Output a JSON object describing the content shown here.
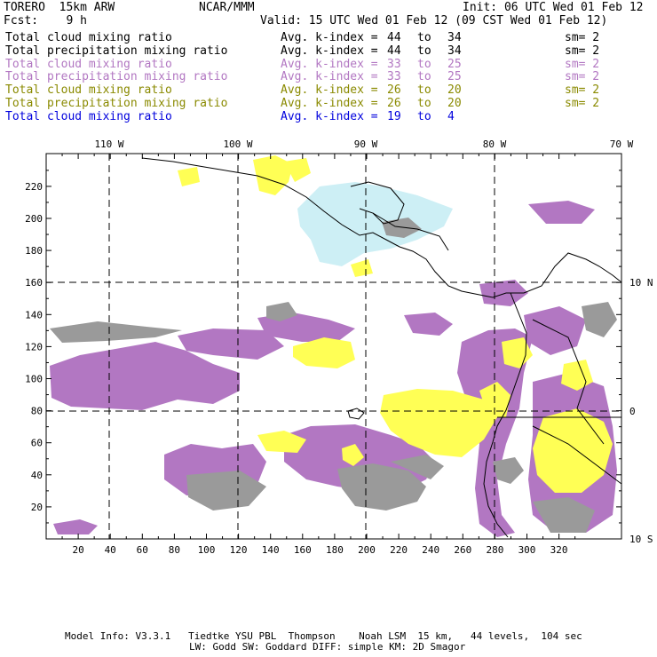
{
  "header": {
    "model": "TORERO  15km ARW",
    "org": "NCAR/MMM",
    "init": "Init: 06 UTC Wed 01 Feb 12",
    "fcst": "Fcst:    9 h",
    "valid": "Valid: 15 UTC Wed 01 Feb 12 (09 CST Wed 01 Feb 12)"
  },
  "legend": [
    {
      "name": "Total cloud mixing ratio",
      "kidx": "Avg. k-index =",
      "a": "44",
      "to": "to",
      "b": "34",
      "sm": "sm= 2",
      "color": "#000000"
    },
    {
      "name": "Total precipitation mixing ratio",
      "kidx": "Avg. k-index =",
      "a": "44",
      "to": "to",
      "b": "34",
      "sm": "sm= 2",
      "color": "#000000"
    },
    {
      "name": "Total cloud mixing ratio",
      "kidx": "Avg. k-index =",
      "a": "33",
      "to": "to",
      "b": "25",
      "sm": "sm= 2",
      "color": "#b277c2"
    },
    {
      "name": "Total precipitation mixing ratio",
      "kidx": "Avg. k-index =",
      "a": "33",
      "to": "to",
      "b": "25",
      "sm": "sm= 2",
      "color": "#b277c2"
    },
    {
      "name": "Total cloud mixing ratio",
      "kidx": "Avg. k-index =",
      "a": "26",
      "to": "to",
      "b": "20",
      "sm": "sm= 2",
      "color": "#8a8a00"
    },
    {
      "name": "Total precipitation mixing ratio",
      "kidx": "Avg. k-index =",
      "a": "26",
      "to": "to",
      "b": "20",
      "sm": "sm= 2",
      "color": "#8a8a00"
    },
    {
      "name": "Total cloud mixing ratio",
      "kidx": "Avg. k-index =",
      "a": "19",
      "to": "to",
      "b": "4",
      "sm": "",
      "color": "#0000dd"
    }
  ],
  "map": {
    "top_lon_labels": [
      "110 W",
      "100 W",
      "90 W",
      "80 W",
      "70 W"
    ],
    "right_lat_labels": [
      "10 N",
      "0",
      "10 S"
    ],
    "x_ticks": [
      "20",
      "40",
      "60",
      "80",
      "100",
      "120",
      "140",
      "160",
      "180",
      "200",
      "220",
      "240",
      "260",
      "280",
      "300",
      "320"
    ],
    "y_ticks": [
      "220",
      "200",
      "180",
      "160",
      "140",
      "120",
      "100",
      "80",
      "60",
      "40",
      "20"
    ],
    "colors": {
      "gray": "#9a9a9a",
      "purple": "#b277c2",
      "yellow": "#ffff55",
      "lightblue": "#cdeff5"
    }
  },
  "footer": {
    "line1": "Model Info: V3.3.1   Tiedtke YSU PBL  Thompson    Noah LSM  15 km,   44 levels,  104 sec",
    "line2": "LW: Godd SW: Goddard DIFF: simple KM: 2D Smagor"
  }
}
